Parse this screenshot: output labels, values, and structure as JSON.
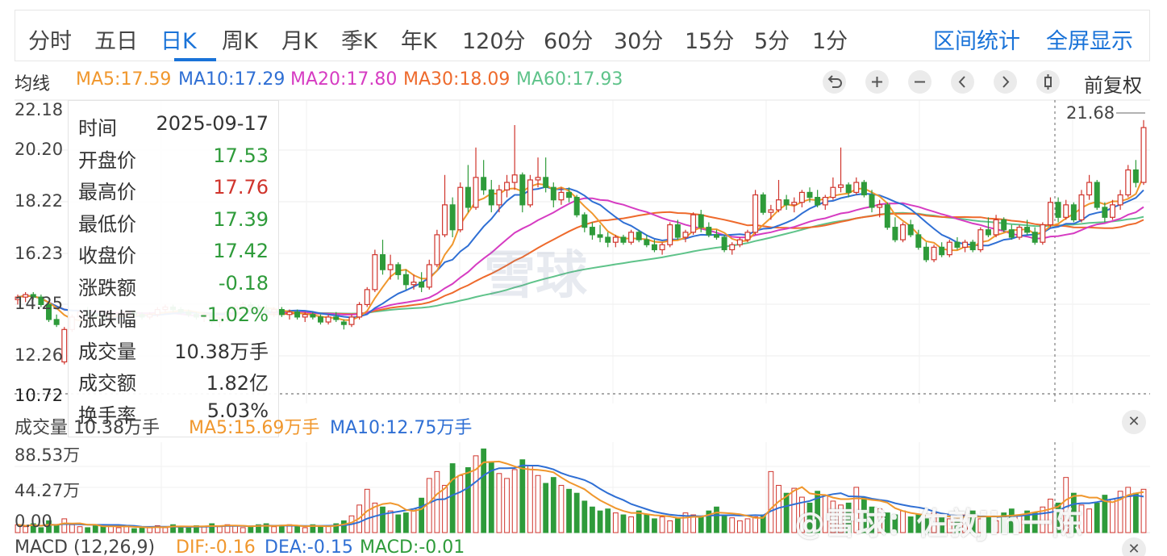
{
  "tabs": [
    "分时",
    "五日",
    "日K",
    "周K",
    "月K",
    "季K",
    "年K",
    "120分",
    "60分",
    "30分",
    "15分",
    "5分",
    "1分"
  ],
  "active_tab": "日K",
  "right_tabs": [
    "区间统计",
    "全屏显示"
  ],
  "ma_row": {
    "label": "均线",
    "items": [
      {
        "text": "MA5:17.59",
        "color": "#f0972d"
      },
      {
        "text": "MA10:17.29",
        "color": "#2f6fd4"
      },
      {
        "text": "MA20:17.80",
        "color": "#d63cc2"
      },
      {
        "text": "MA30:18.09",
        "color": "#ee6a2c"
      },
      {
        "text": "MA60:17.93",
        "color": "#5fc38a"
      }
    ],
    "controls": [
      "undo-icon",
      "zoom-in-icon",
      "zoom-out-icon",
      "chevron-left-icon",
      "chevron-right-icon",
      "candle-icon"
    ],
    "adjust_label": "前复权"
  },
  "price_axis": [
    "22.18",
    "20.20",
    "18.22",
    "16.23",
    "14.25",
    "12.26",
    "10.72"
  ],
  "last_price": "21.68",
  "tooltip": [
    {
      "key": "时间",
      "val": "2025-09-17",
      "color": "#333333"
    },
    {
      "key": "开盘价",
      "val": "17.53",
      "color": "#2e9b3a"
    },
    {
      "key": "最高价",
      "val": "17.76",
      "color": "#d0342c"
    },
    {
      "key": "最低价",
      "val": "17.39",
      "color": "#2e9b3a"
    },
    {
      "key": "收盘价",
      "val": "17.42",
      "color": "#2e9b3a"
    },
    {
      "key": "涨跌额",
      "val": "-0.18",
      "color": "#2e9b3a"
    },
    {
      "key": "涨跌幅",
      "val": "-1.02%",
      "color": "#2e9b3a"
    },
    {
      "key": "成交量",
      "val": "10.38万手",
      "color": "#333333"
    },
    {
      "key": "成交额",
      "val": "1.82亿",
      "color": "#333333"
    },
    {
      "key": "换手率",
      "val": "5.03%",
      "color": "#333333"
    }
  ],
  "vol_row": {
    "label": "成交量 10.38万手",
    "ma5": "MA5:15.69万手",
    "ma10": "MA10:12.75万手"
  },
  "vol_axis": [
    "88.53万",
    "44.27万",
    "0.00"
  ],
  "macd_row": {
    "label": "MACD (12,26,9)",
    "dif": "DIF:-0.16",
    "dea": "DEA:-0.15",
    "macd": "MACD:-0.01"
  },
  "watermark": {
    "brand": "雪球",
    "credit": "@雪球：佐敦jin一陈"
  },
  "colors": {
    "up": "#d0342c",
    "down": "#2e9b3a",
    "ma5": "#f0972d",
    "ma10": "#2f6fd4",
    "ma20": "#d63cc2",
    "ma30": "#ee6a2c",
    "ma60": "#5fc38a"
  },
  "chart_data": {
    "type": "candlestick",
    "price_range": [
      10.72,
      22.18
    ],
    "candles": [
      {
        "o": 14.5,
        "h": 14.7,
        "l": 14.3,
        "c": 14.6
      },
      {
        "o": 14.6,
        "h": 14.8,
        "l": 14.4,
        "c": 14.7
      },
      {
        "o": 14.7,
        "h": 14.8,
        "l": 14.5,
        "c": 14.6
      },
      {
        "o": 14.6,
        "h": 14.7,
        "l": 14.2,
        "c": 14.3
      },
      {
        "o": 14.3,
        "h": 14.4,
        "l": 13.6,
        "c": 13.7
      },
      {
        "o": 13.7,
        "h": 13.9,
        "l": 13.4,
        "c": 13.5
      },
      {
        "o": 12.0,
        "h": 13.4,
        "l": 11.9,
        "c": 13.3
      },
      {
        "o": 13.3,
        "h": 13.9,
        "l": 13.2,
        "c": 13.8
      },
      {
        "o": 13.8,
        "h": 14.1,
        "l": 13.7,
        "c": 14.0
      },
      {
        "o": 14.0,
        "h": 14.2,
        "l": 13.8,
        "c": 13.9
      },
      {
        "o": 13.9,
        "h": 14.0,
        "l": 13.7,
        "c": 13.8
      },
      {
        "o": 13.8,
        "h": 14.0,
        "l": 13.6,
        "c": 13.7
      },
      {
        "o": 13.7,
        "h": 13.9,
        "l": 13.6,
        "c": 13.8
      },
      {
        "o": 13.8,
        "h": 14.0,
        "l": 13.7,
        "c": 13.9
      },
      {
        "o": 13.9,
        "h": 14.1,
        "l": 13.8,
        "c": 14.0
      },
      {
        "o": 14.0,
        "h": 14.1,
        "l": 13.8,
        "c": 13.9
      },
      {
        "o": 13.9,
        "h": 14.0,
        "l": 13.7,
        "c": 13.8
      },
      {
        "o": 13.8,
        "h": 14.0,
        "l": 13.7,
        "c": 13.9
      },
      {
        "o": 13.9,
        "h": 14.2,
        "l": 13.8,
        "c": 14.1
      },
      {
        "o": 14.1,
        "h": 14.3,
        "l": 14.0,
        "c": 14.2
      },
      {
        "o": 14.2,
        "h": 14.3,
        "l": 14.0,
        "c": 14.1
      },
      {
        "o": 14.1,
        "h": 14.2,
        "l": 13.9,
        "c": 14.0
      },
      {
        "o": 14.0,
        "h": 14.1,
        "l": 13.8,
        "c": 13.9
      },
      {
        "o": 13.9,
        "h": 14.0,
        "l": 13.7,
        "c": 13.8
      },
      {
        "o": 13.8,
        "h": 14.0,
        "l": 13.6,
        "c": 13.9
      },
      {
        "o": 13.9,
        "h": 14.0,
        "l": 13.5,
        "c": 13.6
      },
      {
        "o": 13.6,
        "h": 13.8,
        "l": 13.4,
        "c": 13.7
      },
      {
        "o": 13.7,
        "h": 14.1,
        "l": 13.6,
        "c": 14.0
      },
      {
        "o": 14.0,
        "h": 14.3,
        "l": 13.9,
        "c": 14.2
      },
      {
        "o": 14.2,
        "h": 14.4,
        "l": 14.1,
        "c": 14.3
      },
      {
        "o": 14.3,
        "h": 14.4,
        "l": 14.1,
        "c": 14.2
      },
      {
        "o": 14.2,
        "h": 14.3,
        "l": 14.0,
        "c": 14.1
      },
      {
        "o": 14.1,
        "h": 14.3,
        "l": 13.9,
        "c": 14.0
      },
      {
        "o": 14.0,
        "h": 14.2,
        "l": 13.8,
        "c": 14.1
      },
      {
        "o": 14.1,
        "h": 14.2,
        "l": 13.8,
        "c": 13.9
      },
      {
        "o": 13.9,
        "h": 14.1,
        "l": 13.7,
        "c": 14.0
      },
      {
        "o": 14.0,
        "h": 14.1,
        "l": 13.7,
        "c": 13.8
      },
      {
        "o": 13.8,
        "h": 14.0,
        "l": 13.6,
        "c": 13.9
      },
      {
        "o": 13.9,
        "h": 14.0,
        "l": 13.7,
        "c": 13.8
      },
      {
        "o": 13.8,
        "h": 13.9,
        "l": 13.5,
        "c": 13.6
      },
      {
        "o": 13.6,
        "h": 13.9,
        "l": 13.5,
        "c": 13.8
      },
      {
        "o": 13.8,
        "h": 14.0,
        "l": 13.6,
        "c": 13.7
      },
      {
        "o": 13.6,
        "h": 13.7,
        "l": 13.3,
        "c": 13.5
      },
      {
        "o": 13.5,
        "h": 13.9,
        "l": 13.4,
        "c": 13.8
      },
      {
        "o": 13.8,
        "h": 14.4,
        "l": 13.7,
        "c": 14.3
      },
      {
        "o": 14.3,
        "h": 15.0,
        "l": 14.2,
        "c": 14.9
      },
      {
        "o": 14.9,
        "h": 16.5,
        "l": 14.8,
        "c": 16.3
      },
      {
        "o": 16.3,
        "h": 16.9,
        "l": 15.5,
        "c": 15.7
      },
      {
        "o": 15.7,
        "h": 16.3,
        "l": 15.3,
        "c": 15.9
      },
      {
        "o": 15.9,
        "h": 16.0,
        "l": 15.3,
        "c": 15.5
      },
      {
        "o": 15.5,
        "h": 15.7,
        "l": 14.9,
        "c": 15.1
      },
      {
        "o": 15.1,
        "h": 15.5,
        "l": 14.9,
        "c": 15.2
      },
      {
        "o": 15.2,
        "h": 15.6,
        "l": 14.8,
        "c": 15.0
      },
      {
        "o": 15.0,
        "h": 16.1,
        "l": 14.9,
        "c": 15.9
      },
      {
        "o": 15.9,
        "h": 17.3,
        "l": 15.8,
        "c": 17.1
      },
      {
        "o": 17.1,
        "h": 19.5,
        "l": 17.0,
        "c": 18.3
      },
      {
        "o": 18.3,
        "h": 18.6,
        "l": 17.0,
        "c": 17.3
      },
      {
        "o": 17.3,
        "h": 19.2,
        "l": 17.2,
        "c": 19.0
      },
      {
        "o": 19.0,
        "h": 19.9,
        "l": 18.0,
        "c": 18.2
      },
      {
        "o": 18.2,
        "h": 20.6,
        "l": 18.1,
        "c": 19.4
      },
      {
        "o": 19.4,
        "h": 20.1,
        "l": 18.7,
        "c": 18.9
      },
      {
        "o": 18.9,
        "h": 19.3,
        "l": 18.0,
        "c": 18.3
      },
      {
        "o": 18.3,
        "h": 19.1,
        "l": 18.0,
        "c": 18.9
      },
      {
        "o": 18.9,
        "h": 19.5,
        "l": 18.6,
        "c": 19.2
      },
      {
        "o": 19.2,
        "h": 21.5,
        "l": 18.9,
        "c": 19.5
      },
      {
        "o": 19.5,
        "h": 19.6,
        "l": 18.0,
        "c": 18.3
      },
      {
        "o": 18.3,
        "h": 19.5,
        "l": 18.2,
        "c": 19.3
      },
      {
        "o": 19.3,
        "h": 20.2,
        "l": 19.0,
        "c": 19.4
      },
      {
        "o": 19.4,
        "h": 20.2,
        "l": 18.8,
        "c": 19.0
      },
      {
        "o": 19.0,
        "h": 19.2,
        "l": 18.2,
        "c": 18.5
      },
      {
        "o": 18.5,
        "h": 19.0,
        "l": 18.3,
        "c": 18.8
      },
      {
        "o": 18.8,
        "h": 19.0,
        "l": 18.4,
        "c": 18.6
      },
      {
        "o": 18.6,
        "h": 18.7,
        "l": 17.8,
        "c": 17.9
      },
      {
        "o": 17.9,
        "h": 18.0,
        "l": 17.2,
        "c": 17.4
      },
      {
        "o": 17.4,
        "h": 17.6,
        "l": 16.9,
        "c": 17.1
      },
      {
        "o": 17.1,
        "h": 17.5,
        "l": 16.8,
        "c": 17.0
      },
      {
        "o": 17.0,
        "h": 17.2,
        "l": 16.6,
        "c": 16.8
      },
      {
        "o": 16.8,
        "h": 17.1,
        "l": 16.6,
        "c": 17.0
      },
      {
        "o": 17.0,
        "h": 17.1,
        "l": 16.7,
        "c": 16.8
      },
      {
        "o": 16.8,
        "h": 17.3,
        "l": 16.7,
        "c": 17.2
      },
      {
        "o": 17.2,
        "h": 17.3,
        "l": 16.8,
        "c": 16.9
      },
      {
        "o": 16.9,
        "h": 17.1,
        "l": 16.6,
        "c": 16.7
      },
      {
        "o": 16.7,
        "h": 16.9,
        "l": 16.4,
        "c": 16.5
      },
      {
        "o": 16.5,
        "h": 16.8,
        "l": 16.3,
        "c": 16.7
      },
      {
        "o": 16.7,
        "h": 17.6,
        "l": 16.6,
        "c": 17.5
      },
      {
        "o": 17.5,
        "h": 17.7,
        "l": 16.9,
        "c": 17.0
      },
      {
        "o": 17.0,
        "h": 17.3,
        "l": 16.8,
        "c": 17.2
      },
      {
        "o": 17.2,
        "h": 18.0,
        "l": 17.1,
        "c": 17.9
      },
      {
        "o": 17.9,
        "h": 18.1,
        "l": 17.2,
        "c": 17.4
      },
      {
        "o": 17.4,
        "h": 17.6,
        "l": 17.0,
        "c": 17.1
      },
      {
        "o": 17.1,
        "h": 17.3,
        "l": 16.9,
        "c": 17.0
      },
      {
        "o": 17.0,
        "h": 17.1,
        "l": 16.4,
        "c": 16.5
      },
      {
        "o": 16.5,
        "h": 16.8,
        "l": 16.3,
        "c": 16.7
      },
      {
        "o": 16.7,
        "h": 17.0,
        "l": 16.6,
        "c": 16.9
      },
      {
        "o": 16.9,
        "h": 17.3,
        "l": 16.8,
        "c": 17.2
      },
      {
        "o": 17.2,
        "h": 18.9,
        "l": 17.1,
        "c": 18.7
      },
      {
        "o": 18.7,
        "h": 18.8,
        "l": 17.9,
        "c": 18.0
      },
      {
        "o": 18.0,
        "h": 18.3,
        "l": 17.7,
        "c": 18.1
      },
      {
        "o": 18.1,
        "h": 19.3,
        "l": 18.0,
        "c": 18.5
      },
      {
        "o": 18.5,
        "h": 18.7,
        "l": 18.1,
        "c": 18.3
      },
      {
        "o": 18.3,
        "h": 18.6,
        "l": 18.0,
        "c": 18.4
      },
      {
        "o": 18.4,
        "h": 18.9,
        "l": 18.2,
        "c": 18.8
      },
      {
        "o": 18.8,
        "h": 19.0,
        "l": 18.4,
        "c": 18.6
      },
      {
        "o": 18.6,
        "h": 18.9,
        "l": 18.2,
        "c": 18.3
      },
      {
        "o": 18.3,
        "h": 18.7,
        "l": 18.1,
        "c": 18.6
      },
      {
        "o": 18.6,
        "h": 19.4,
        "l": 18.5,
        "c": 19.0
      },
      {
        "o": 19.0,
        "h": 20.6,
        "l": 18.8,
        "c": 19.1
      },
      {
        "o": 19.1,
        "h": 19.2,
        "l": 18.6,
        "c": 18.8
      },
      {
        "o": 18.8,
        "h": 19.4,
        "l": 18.7,
        "c": 19.2
      },
      {
        "o": 19.2,
        "h": 19.3,
        "l": 18.6,
        "c": 18.7
      },
      {
        "o": 18.7,
        "h": 18.9,
        "l": 18.0,
        "c": 18.2
      },
      {
        "o": 18.2,
        "h": 18.5,
        "l": 17.8,
        "c": 18.3
      },
      {
        "o": 18.3,
        "h": 18.4,
        "l": 17.3,
        "c": 17.4
      },
      {
        "o": 17.4,
        "h": 17.8,
        "l": 16.8,
        "c": 16.9
      },
      {
        "o": 16.9,
        "h": 17.6,
        "l": 16.8,
        "c": 17.5
      },
      {
        "o": 17.5,
        "h": 17.7,
        "l": 17.0,
        "c": 17.1
      },
      {
        "o": 17.1,
        "h": 17.3,
        "l": 16.5,
        "c": 16.6
      },
      {
        "o": 16.6,
        "h": 16.8,
        "l": 16.0,
        "c": 16.1
      },
      {
        "o": 16.1,
        "h": 16.7,
        "l": 16.0,
        "c": 16.6
      },
      {
        "o": 16.6,
        "h": 16.8,
        "l": 16.2,
        "c": 16.3
      },
      {
        "o": 16.3,
        "h": 16.9,
        "l": 16.2,
        "c": 16.8
      },
      {
        "o": 16.8,
        "h": 17.0,
        "l": 16.5,
        "c": 16.6
      },
      {
        "o": 16.6,
        "h": 16.9,
        "l": 16.4,
        "c": 16.8
      },
      {
        "o": 16.8,
        "h": 16.9,
        "l": 16.4,
        "c": 16.5
      },
      {
        "o": 16.5,
        "h": 17.4,
        "l": 16.4,
        "c": 17.3
      },
      {
        "o": 17.3,
        "h": 17.8,
        "l": 17.0,
        "c": 17.1
      },
      {
        "o": 17.1,
        "h": 17.9,
        "l": 17.0,
        "c": 17.7
      },
      {
        "o": 17.7,
        "h": 17.8,
        "l": 17.2,
        "c": 17.3
      },
      {
        "o": 17.3,
        "h": 17.5,
        "l": 16.9,
        "c": 17.0
      },
      {
        "o": 17.0,
        "h": 17.5,
        "l": 16.9,
        "c": 17.4
      },
      {
        "o": 17.4,
        "h": 17.7,
        "l": 17.1,
        "c": 17.2
      },
      {
        "o": 17.2,
        "h": 17.4,
        "l": 16.7,
        "c": 16.8
      },
      {
        "o": 16.8,
        "h": 17.6,
        "l": 16.7,
        "c": 17.5
      },
      {
        "o": 17.5,
        "h": 18.6,
        "l": 17.4,
        "c": 18.4
      },
      {
        "o": 18.4,
        "h": 18.6,
        "l": 17.6,
        "c": 17.8
      },
      {
        "o": 17.8,
        "h": 18.5,
        "l": 17.7,
        "c": 18.3
      },
      {
        "o": 18.3,
        "h": 18.4,
        "l": 17.6,
        "c": 17.7
      },
      {
        "o": 17.7,
        "h": 18.9,
        "l": 17.6,
        "c": 18.7
      },
      {
        "o": 18.7,
        "h": 19.5,
        "l": 18.5,
        "c": 19.2
      },
      {
        "o": 19.2,
        "h": 19.3,
        "l": 18.1,
        "c": 18.2
      },
      {
        "o": 18.2,
        "h": 18.4,
        "l": 17.6,
        "c": 17.8
      },
      {
        "o": 17.8,
        "h": 18.5,
        "l": 17.7,
        "c": 18.3
      },
      {
        "o": 18.3,
        "h": 18.9,
        "l": 18.1,
        "c": 18.7
      },
      {
        "o": 18.7,
        "h": 19.9,
        "l": 18.6,
        "c": 19.7
      },
      {
        "o": 19.7,
        "h": 20.1,
        "l": 19.0,
        "c": 19.2
      },
      {
        "o": 19.2,
        "h": 21.7,
        "l": 19.1,
        "c": 21.4
      }
    ],
    "volume_range": [
      0,
      88.53
    ],
    "volumes_wan": [
      8,
      6,
      9,
      5,
      12,
      7,
      14,
      8,
      6,
      5,
      7,
      6,
      8,
      5,
      6,
      4,
      5,
      6,
      7,
      5,
      8,
      6,
      5,
      7,
      6,
      9,
      6,
      8,
      7,
      5,
      6,
      8,
      9,
      6,
      7,
      8,
      6,
      5,
      8,
      6,
      7,
      9,
      12,
      17,
      28,
      44,
      30,
      26,
      22,
      18,
      20,
      24,
      35,
      55,
      62,
      48,
      70,
      58,
      66,
      78,
      85,
      72,
      60,
      55,
      64,
      74,
      68,
      58,
      50,
      56,
      48,
      44,
      40,
      32,
      26,
      22,
      24,
      20,
      18,
      16,
      22,
      18,
      14,
      16,
      12,
      14,
      20,
      18,
      16,
      22,
      26,
      18,
      15,
      12,
      14,
      16,
      18,
      62,
      48,
      40,
      45,
      36,
      30,
      42,
      38,
      32,
      28,
      30,
      46,
      36,
      26,
      24,
      20,
      18,
      22,
      16,
      18,
      14,
      20,
      16,
      14,
      12,
      18,
      22,
      14,
      16,
      12,
      20,
      24,
      18,
      22,
      20,
      26,
      34,
      30,
      56,
      40,
      28,
      24,
      30,
      38,
      34,
      42,
      46,
      40,
      44
    ]
  }
}
